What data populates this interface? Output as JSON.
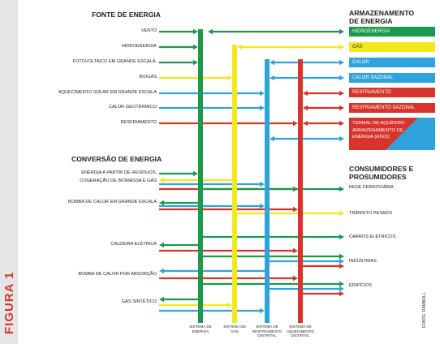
{
  "figure_label": "FIGURA 1",
  "source_note": "FONTE: RAMBOLL",
  "titles": {
    "sources": "FONTE DE ENERGIA",
    "storage_line1": "ARMAZENAMENTO",
    "storage_line2": "DE ENERGIA",
    "conversion": "CONVERSÃO DE ENERGIA",
    "consumers_line1": "CONSUMIDORES E",
    "consumers_line2": "PROSUMIDORES"
  },
  "colors": {
    "energia": "#1a9a4a",
    "gas": "#f3e81e",
    "resfriamento": "#2ea3dc",
    "aquecimento": "#d8342c"
  },
  "sources": [
    "VENTO",
    "HIDROENERGIA",
    "FOTOVOLTAICO EM GRANDE ESCALA.",
    "BIOGÁS",
    "AQUECIMENTO SOLAR EM GRANDE ESCALA",
    "CALOR GEOTÉRMICO",
    "RESFRIAMENTO"
  ],
  "conversion": [
    "ENERGIA A PARTIR DE RESÍDUOS,",
    "COGERAÇÃO DE BIOMASSA E GÁS",
    "BOMBA DE CALOR EM GRANDE ESCALA",
    "CALDEIRA ELÉTRICA",
    "BOMBA DE CALOR POR ABSORÇÃO",
    "GÁS SINTÉTICO"
  ],
  "storage": [
    "HIDROENERGIA",
    "GÁS",
    "CALOR",
    "CALOR SAZONAL",
    "RESFRIAMENTO",
    "RESFRIAMENTO SAZONAL"
  ],
  "storage_ates": [
    "TERMAL DE AQUÍFERO",
    "ARMAZENAMENTO DE",
    "ENERGIA (ATES)"
  ],
  "consumers": [
    "REDE FERROVIÁRIA",
    "TRÂNSITO PESADO",
    "CARROS ELÉTRICOS",
    "INDÚSTRIAS",
    "EDIFÍCIOS"
  ],
  "systems": [
    [
      "SISTEMA DE",
      "ENERGIA"
    ],
    [
      "SISTEMA DE",
      "GÁS"
    ],
    [
      "SISTEMA DE",
      "RESFRIAMENTO",
      "DISTRITAL"
    ],
    [
      "SISTEMA DE",
      "AQUECIMENTO",
      "DISTRITAL"
    ]
  ]
}
